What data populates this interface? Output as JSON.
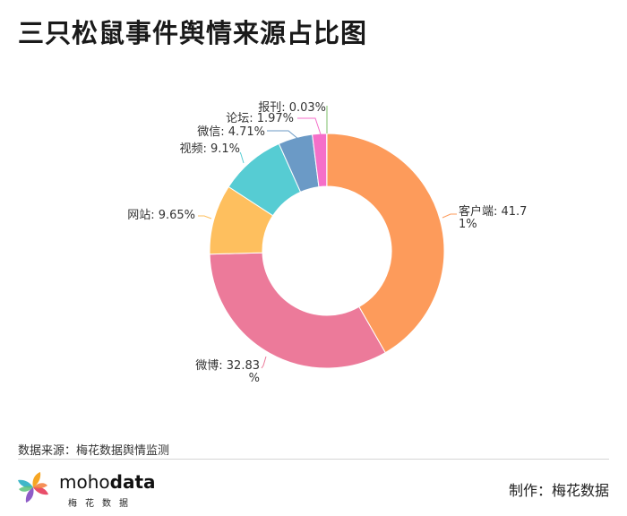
{
  "title": "三只松鼠事件舆情来源占比图",
  "chart_data": {
    "type": "pie",
    "variant": "donut",
    "slices": [
      {
        "name": "客户端",
        "value": 41.71,
        "label": [
          "客户端: 41.7",
          "1%"
        ],
        "color": "#FD9B5B"
      },
      {
        "name": "微博",
        "value": 32.83,
        "label": [
          "微博: 32.83",
          "%"
        ],
        "color": "#EC7A9A"
      },
      {
        "name": "网站",
        "value": 9.65,
        "label": [
          "网站: 9.65%"
        ],
        "color": "#FEBF5E"
      },
      {
        "name": "视频",
        "value": 9.1,
        "label": [
          "视频: 9.1%"
        ],
        "color": "#56CCD3"
      },
      {
        "name": "微信",
        "value": 4.71,
        "label": [
          "微信: 4.71%"
        ],
        "color": "#6B9AC6"
      },
      {
        "name": "论坛",
        "value": 1.97,
        "label": [
          "论坛: 1.97%"
        ],
        "color": "#F56FC9"
      },
      {
        "name": "报刊",
        "value": 0.03,
        "label": [
          "报刊: 0.03%"
        ],
        "color": "#7CBF6A"
      }
    ]
  },
  "source": "数据来源：梅花数据舆情监测",
  "logo": {
    "brand_main": "moho",
    "brand_bold": "data",
    "brand_sub": "梅花数据"
  },
  "credit": "制作：梅花数据"
}
